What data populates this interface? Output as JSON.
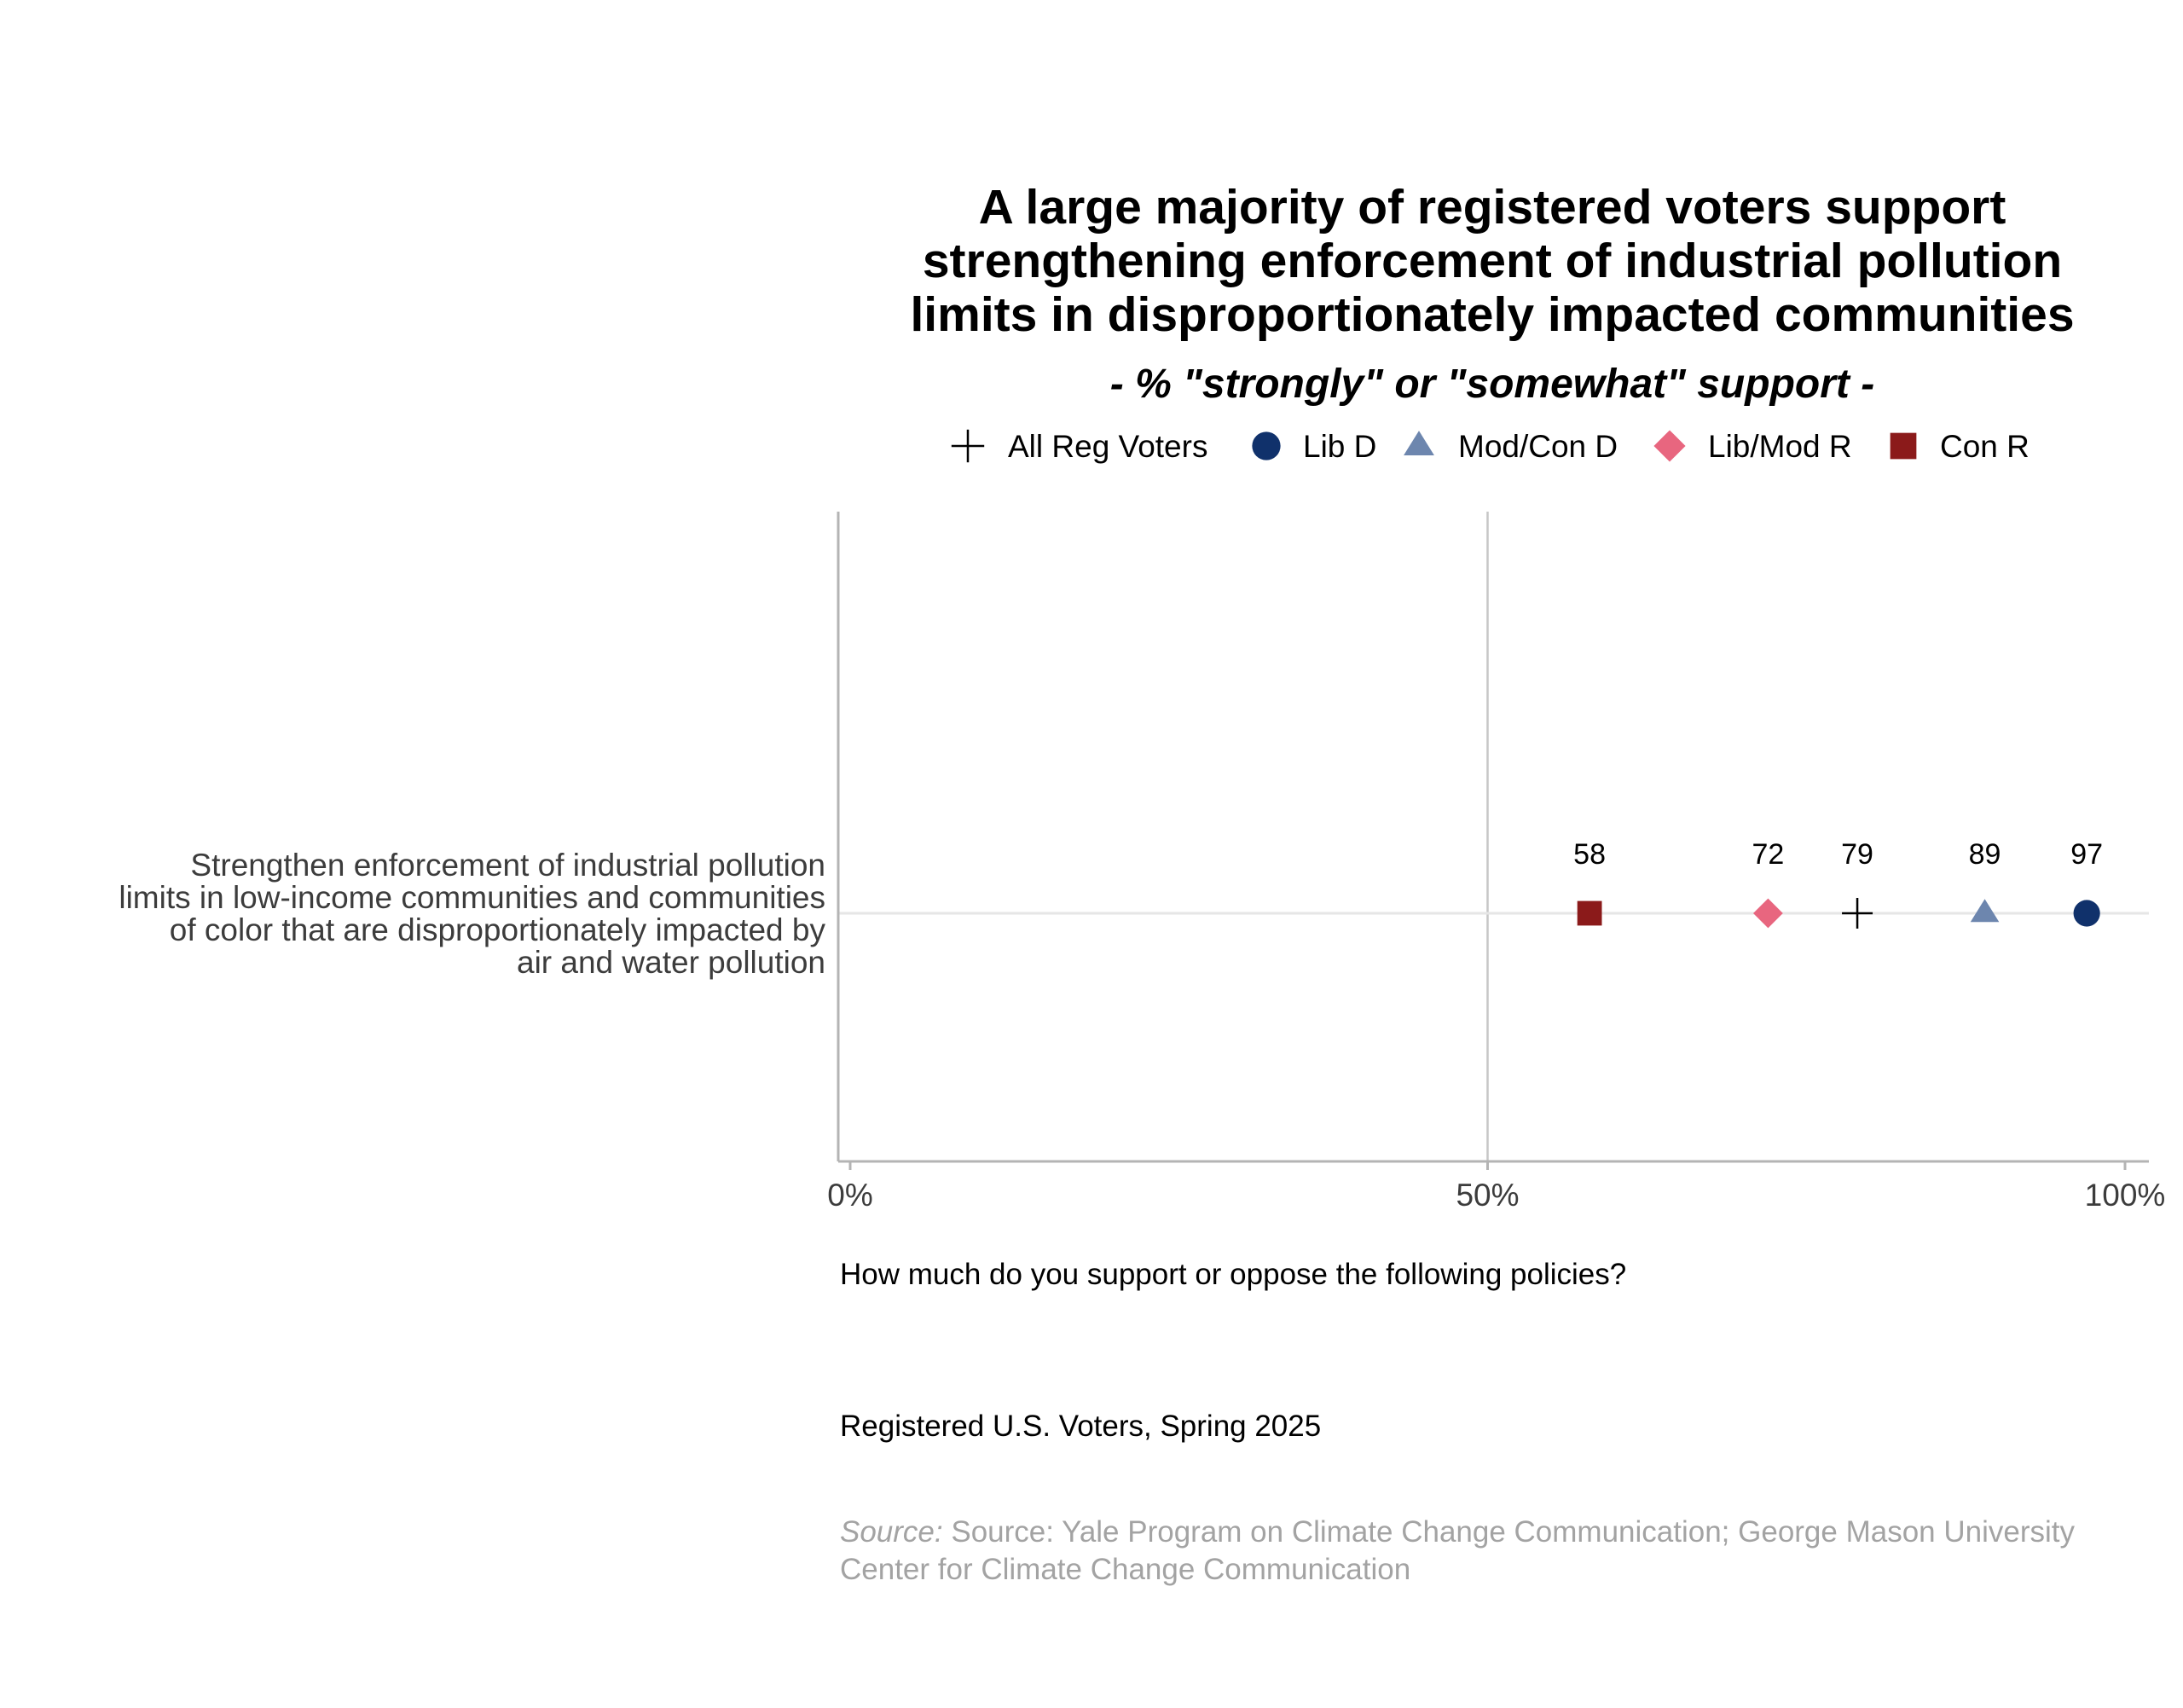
{
  "chart_data": {
    "type": "scatter",
    "title_lines": [
      "A large majority of registered voters support",
      "strengthening enforcement of industrial pollution",
      "limits in disproportionately impacted communities"
    ],
    "subtitle": "- % \"strongly\" or \"somewhat\" support -",
    "categories": [
      [
        "Strengthen enforcement of industrial pollution",
        "limits in low-income communities and communities",
        "of color that are disproportionately impacted by",
        "air and water pollution"
      ]
    ],
    "xlim": [
      0,
      100
    ],
    "x_ticks": [
      0,
      50,
      100
    ],
    "x_tick_labels": [
      "0%",
      "50%",
      "100%"
    ],
    "legend_position": "top",
    "series": [
      {
        "name": "All Reg Voters",
        "marker": "plus",
        "color": "#000000",
        "values": [
          79
        ]
      },
      {
        "name": "Lib D",
        "marker": "circle",
        "color": "#10316b",
        "values": [
          97
        ]
      },
      {
        "name": "Mod/Con D",
        "marker": "triangle",
        "color": "#6d86ae",
        "values": [
          89
        ]
      },
      {
        "name": "Lib/Mod R",
        "marker": "diamond",
        "color": "#e8667f",
        "values": [
          72
        ]
      },
      {
        "name": "Con R",
        "marker": "square",
        "color": "#8b1a1a",
        "values": [
          58
        ]
      }
    ],
    "grid": true
  },
  "question": "How much do you support or oppose the following policies?",
  "population": "Registered U.S. Voters, Spring 2025",
  "source_label": "Source:",
  "source_text": "Source: Yale Program on Climate Change Communication; George Mason University Center for Climate Change Communication"
}
